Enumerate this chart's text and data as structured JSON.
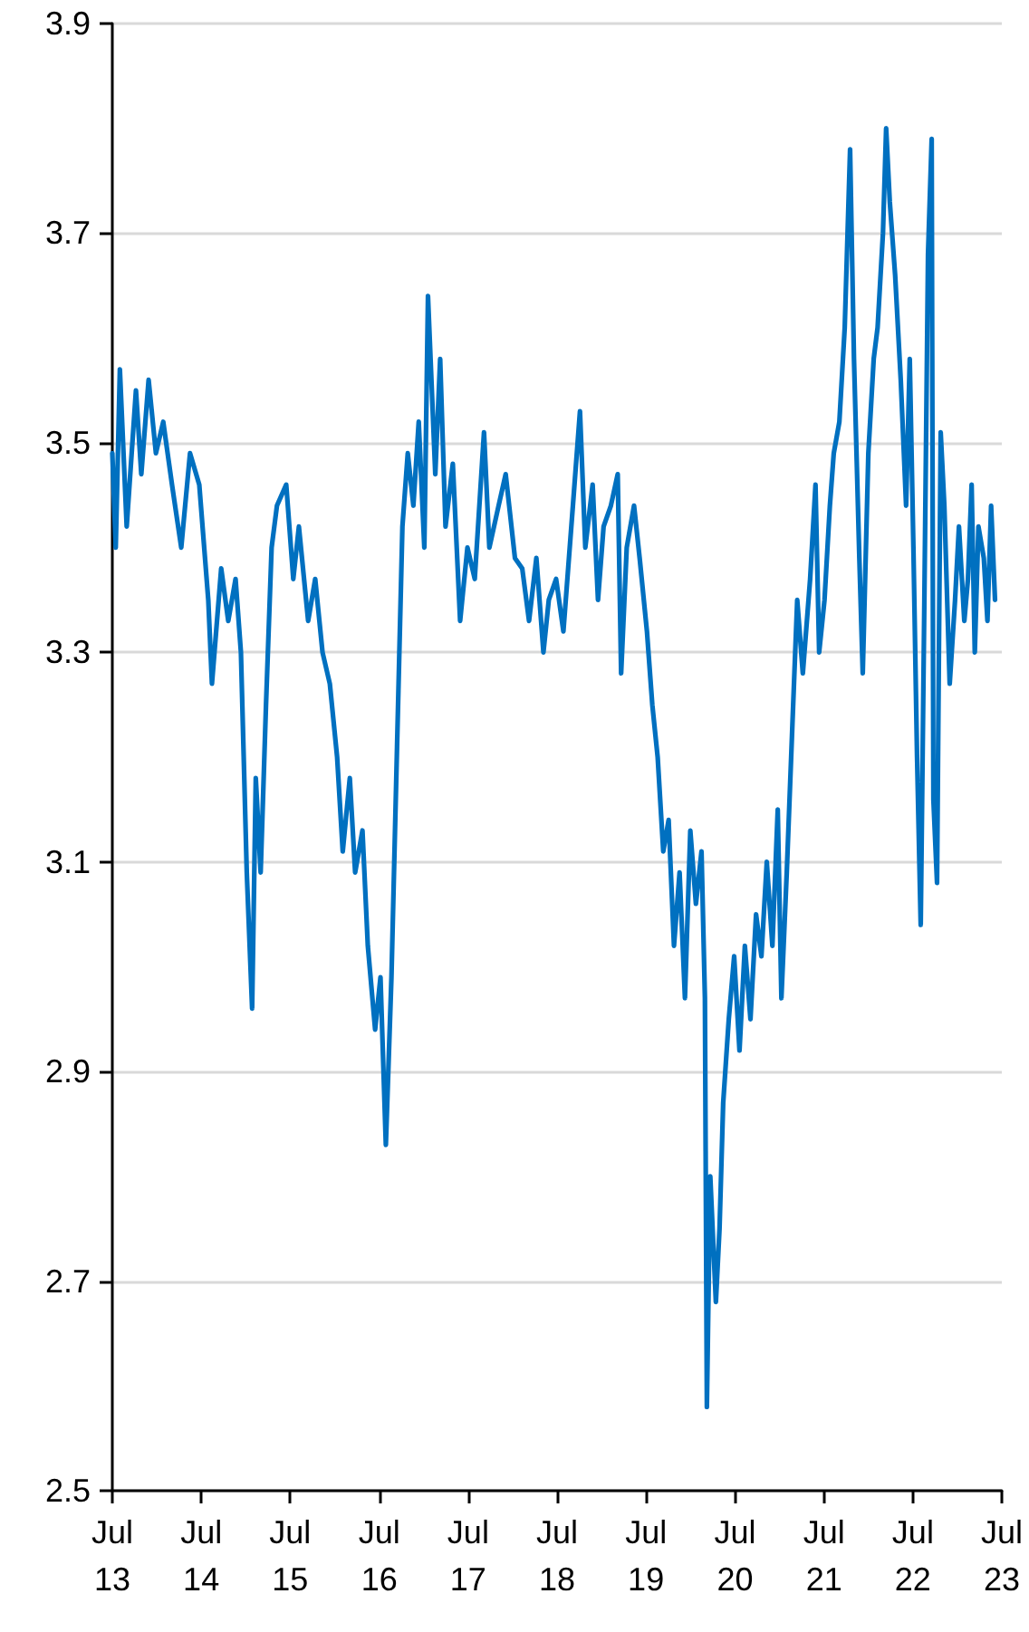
{
  "chart_data": {
    "type": "line",
    "x": [
      "2013-07-01",
      "2013-07-15",
      "2013-08-01",
      "2013-08-29",
      "2013-10-06",
      "2013-10-28",
      "2013-11-27",
      "2013-12-27",
      "2014-01-26",
      "2014-03-03",
      "2014-04-10",
      "2014-05-16",
      "2014-06-23",
      "2014-07-30",
      "2014-08-14",
      "2014-09-21",
      "2014-10-20",
      "2014-11-19",
      "2014-12-11",
      "2015-01-04",
      "2015-01-26",
      "2015-02-10",
      "2015-03-02",
      "2015-03-24",
      "2015-04-16",
      "2015-05-08",
      "2015-06-15",
      "2015-07-14",
      "2015-08-06",
      "2015-09-13",
      "2015-10-12",
      "2015-11-11",
      "2015-12-11",
      "2016-01-10",
      "2016-02-02",
      "2016-03-02",
      "2016-03-24",
      "2016-04-23",
      "2016-05-15",
      "2016-06-14",
      "2016-07-06",
      "2016-07-28",
      "2016-08-20",
      "2016-09-12",
      "2016-10-04",
      "2016-10-26",
      "2016-11-18",
      "2016-12-10",
      "2017-01-02",
      "2017-01-17",
      "2017-02-16",
      "2017-03-08",
      "2017-03-30",
      "2017-04-29",
      "2017-05-29",
      "2017-06-28",
      "2017-07-28",
      "2017-09-04",
      "2017-09-26",
      "2017-11-03",
      "2017-12-02",
      "2018-01-09",
      "2018-02-08",
      "2018-03-08",
      "2018-04-07",
      "2018-05-06",
      "2018-05-28",
      "2018-06-27",
      "2018-07-27",
      "2018-09-04",
      "2018-10-03",
      "2018-10-25",
      "2018-11-24",
      "2018-12-16",
      "2019-01-08",
      "2019-02-07",
      "2019-03-07",
      "2019-03-21",
      "2019-04-13",
      "2019-05-13",
      "2019-06-05",
      "2019-07-05",
      "2019-07-27",
      "2019-08-18",
      "2019-09-10",
      "2019-10-02",
      "2019-10-24",
      "2019-11-16",
      "2019-12-08",
      "2019-12-30",
      "2020-01-22",
      "2020-02-14",
      "2020-02-28",
      "2020-03-07",
      "2020-03-21",
      "2020-04-13",
      "2020-04-28",
      "2020-05-13",
      "2020-06-05",
      "2020-06-27",
      "2020-07-19",
      "2020-08-10",
      "2020-09-02",
      "2020-09-25",
      "2020-10-17",
      "2020-11-08",
      "2020-12-01",
      "2020-12-23",
      "2021-01-07",
      "2021-01-29",
      "2021-02-21",
      "2021-03-13",
      "2021-04-05",
      "2021-05-05",
      "2021-05-27",
      "2021-06-11",
      "2021-07-03",
      "2021-07-25",
      "2021-08-10",
      "2021-09-02",
      "2021-09-24",
      "2021-10-16",
      "2021-11-01",
      "2021-11-23",
      "2021-12-07",
      "2021-12-30",
      "2022-01-21",
      "2022-02-06",
      "2022-02-28",
      "2022-03-13",
      "2022-03-28",
      "2022-04-19",
      "2022-05-12",
      "2022-06-03",
      "2022-06-18",
      "2022-07-03",
      "2022-07-18",
      "2022-08-02",
      "2022-08-17",
      "2022-09-01",
      "2022-09-16",
      "2022-09-23",
      "2022-10-08",
      "2022-10-23",
      "2022-11-07",
      "2022-11-29",
      "2022-12-21",
      "2023-01-06",
      "2023-01-28",
      "2023-02-12",
      "2023-02-27",
      "2023-03-12",
      "2023-03-27",
      "2023-04-18",
      "2023-05-03",
      "2023-05-18",
      "2023-06-03"
    ],
    "series": [
      {
        "color": "#0070c0",
        "values": [
          3.49,
          3.4,
          3.57,
          3.42,
          3.55,
          3.47,
          3.56,
          3.49,
          3.52,
          3.46,
          3.4,
          3.49,
          3.46,
          3.35,
          3.27,
          3.38,
          3.33,
          3.37,
          3.3,
          3.09,
          2.96,
          3.18,
          3.09,
          3.25,
          3.4,
          3.44,
          3.46,
          3.37,
          3.42,
          3.33,
          3.37,
          3.3,
          3.27,
          3.2,
          3.11,
          3.18,
          3.09,
          3.13,
          3.02,
          2.94,
          2.99,
          2.83,
          2.99,
          3.21,
          3.42,
          3.49,
          3.44,
          3.52,
          3.4,
          3.64,
          3.47,
          3.58,
          3.42,
          3.48,
          3.33,
          3.4,
          3.37,
          3.51,
          3.4,
          3.44,
          3.47,
          3.39,
          3.38,
          3.33,
          3.39,
          3.3,
          3.35,
          3.37,
          3.32,
          3.44,
          3.53,
          3.4,
          3.46,
          3.35,
          3.42,
          3.44,
          3.47,
          3.28,
          3.4,
          3.44,
          3.39,
          3.32,
          3.25,
          3.2,
          3.11,
          3.14,
          3.02,
          3.09,
          2.97,
          3.13,
          3.06,
          3.11,
          2.97,
          2.58,
          2.8,
          2.68,
          2.75,
          2.87,
          2.95,
          3.01,
          2.92,
          3.02,
          2.95,
          3.05,
          3.01,
          3.1,
          3.02,
          3.15,
          2.97,
          3.09,
          3.23,
          3.35,
          3.28,
          3.37,
          3.46,
          3.3,
          3.35,
          3.44,
          3.49,
          3.52,
          3.61,
          3.78,
          3.58,
          3.39,
          3.28,
          3.49,
          3.58,
          3.61,
          3.7,
          3.8,
          3.73,
          3.66,
          3.56,
          3.44,
          3.58,
          3.4,
          3.2,
          3.04,
          3.35,
          3.68,
          3.79,
          3.16,
          3.08,
          3.51,
          3.44,
          3.27,
          3.35,
          3.42,
          3.33,
          3.37,
          3.46,
          3.3,
          3.42,
          3.39,
          3.33,
          3.44,
          3.35
        ]
      }
    ],
    "xlim": [
      "2013-07-01",
      "2023-07-01"
    ],
    "xticks": [
      {
        "value": "2013-07-01",
        "label": "Jul\n13"
      },
      {
        "value": "2014-07-01",
        "label": "Jul\n14"
      },
      {
        "value": "2015-07-01",
        "label": "Jul\n15"
      },
      {
        "value": "2016-07-01",
        "label": "Jul\n16"
      },
      {
        "value": "2017-07-01",
        "label": "Jul\n17"
      },
      {
        "value": "2018-07-01",
        "label": "Jul\n18"
      },
      {
        "value": "2019-07-01",
        "label": "Jul\n19"
      },
      {
        "value": "2020-07-01",
        "label": "Jul\n20"
      },
      {
        "value": "2021-07-01",
        "label": "Jul\n21"
      },
      {
        "value": "2022-07-01",
        "label": "Jul\n22"
      },
      {
        "value": "2023-07-01",
        "label": "Jul\n23"
      }
    ],
    "ylim": [
      2.5,
      3.9
    ],
    "yticks": [
      2.5,
      2.7,
      2.9,
      3.1,
      3.3,
      3.5,
      3.7,
      3.9
    ],
    "grid": "y",
    "marker": "none",
    "line_style": "solid"
  }
}
